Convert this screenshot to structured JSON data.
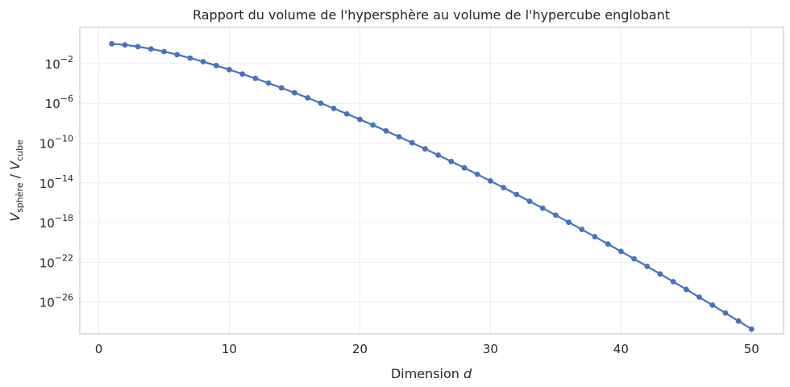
{
  "chart_data": {
    "type": "line",
    "title": "Rapport du volume de l'hypersphère au volume de l'hypercube englobant",
    "xlabel": {
      "prefix": "Dimension",
      "var": "d"
    },
    "ylabel": {
      "V1": "V",
      "sub1": "sphère",
      "slash": " / ",
      "V2": "V",
      "sub2": "cube"
    },
    "scale": {
      "x": "linear",
      "y": "log"
    },
    "xlim": [
      -1.45,
      52.45
    ],
    "ylim_log10": [
      -29.2,
      1.65
    ],
    "xticks": [
      0,
      10,
      20,
      30,
      40,
      50
    ],
    "xtick_labels": [
      "0",
      "10",
      "20",
      "30",
      "40",
      "50"
    ],
    "yticks_log10": [
      -26,
      -22,
      -18,
      -14,
      -10,
      -6,
      -2
    ],
    "ytick_labels": [
      {
        "base": "10",
        "exp": "−26"
      },
      {
        "base": "10",
        "exp": "−22"
      },
      {
        "base": "10",
        "exp": "−18"
      },
      {
        "base": "10",
        "exp": "−14"
      },
      {
        "base": "10",
        "exp": "−10"
      },
      {
        "base": "10",
        "exp": "−6"
      },
      {
        "base": "10",
        "exp": "−2"
      }
    ],
    "grid": true,
    "series": [
      {
        "color": "#4472c4",
        "marker": "circle",
        "x": [
          1,
          2,
          3,
          4,
          5,
          6,
          7,
          8,
          9,
          10,
          11,
          12,
          13,
          14,
          15,
          16,
          17,
          18,
          19,
          20,
          21,
          22,
          23,
          24,
          25,
          26,
          27,
          28,
          29,
          30,
          31,
          32,
          33,
          34,
          35,
          36,
          37,
          38,
          39,
          40,
          41,
          42,
          43,
          44,
          45,
          46,
          47,
          48,
          49,
          50
        ],
        "y": [
          1,
          0.7854,
          0.5236,
          0.3084,
          0.1645,
          0.08075,
          0.03691,
          0.01585,
          0.006442,
          0.00249,
          0.0009199,
          0.0003259,
          0.0001111,
          3.657e-05,
          1.163e-05,
          3.586e-06,
          1.073e-06,
          3.12e-07,
          8.823e-08,
          2.461e-08,
          6.555e-09,
          1.712e-09,
          4.36e-10,
          1.081e-10,
          2.613e-11,
          6.167e-12,
          1.43e-12,
          3.237e-13,
          7.161e-14,
          1.551e-14,
          3.289e-15,
          6.855e-16,
          1.402e-16,
          2.808e-17,
          5.533e-18,
          1.07e-18,
          2.031e-19,
          3.795e-20,
          6.964e-21,
          1.254e-21,
          2.228e-22,
          3.882e-23,
          6.661e-24,
          1.121e-24,
          1.862e-25,
          3.039e-26,
          4.887e-27,
          7.764e-28,
          1.209e-28,
          1.857e-29
        ]
      }
    ]
  }
}
